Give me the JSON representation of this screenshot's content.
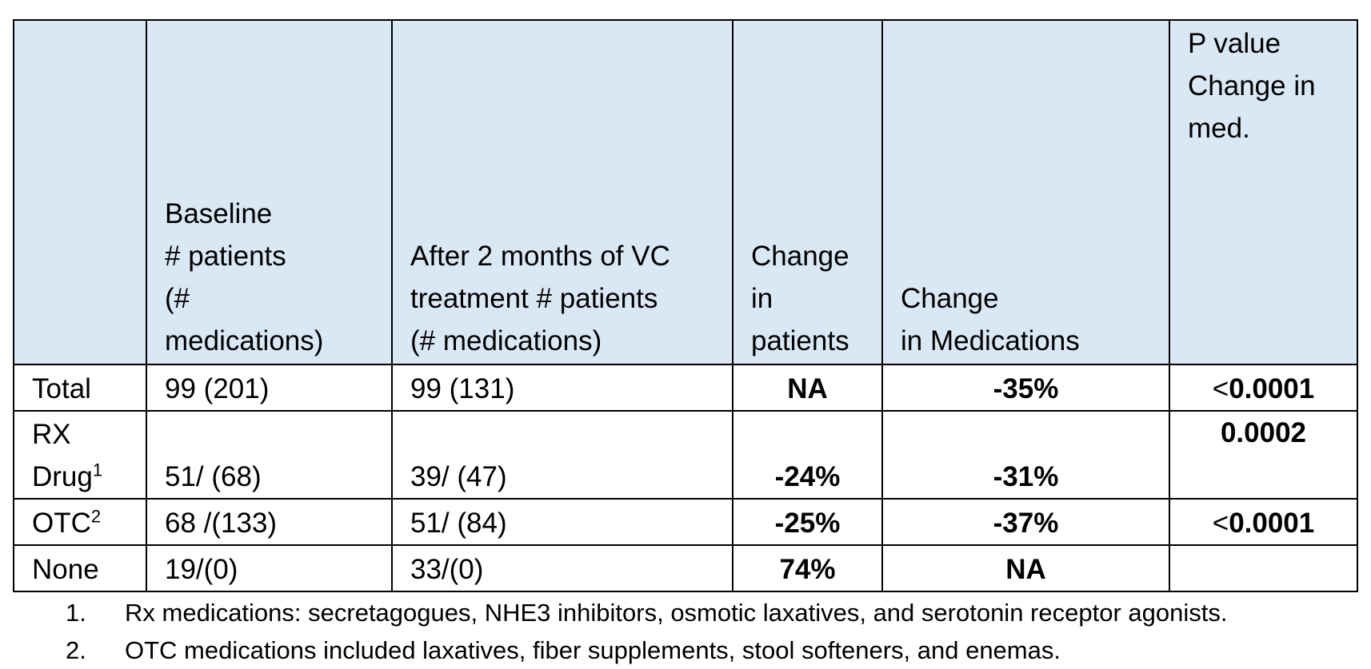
{
  "table": {
    "headers": [
      "",
      "Baseline\n# patients\n(#\nmedications)",
      "After 2 months of VC\ntreatment # patients\n(# medications)",
      "Change\nin\npatients",
      "Change\n in Medications",
      "P value\nChange in\nmed."
    ],
    "rows": [
      {
        "label": "Total",
        "label_sup": "",
        "baseline": "99 (201)",
        "after": "99 (131)",
        "change_patients": "NA",
        "change_medications": "-35%",
        "p_value_symbol": "<",
        "p_value": "0.0001"
      },
      {
        "label": "RX\nDrug",
        "label_sup": "1",
        "baseline": "51/ (68)",
        "after": "39/ (47)",
        "change_patients": "-24%",
        "change_medications": "-31%",
        "p_value_symbol": "",
        "p_value": "0.0002"
      },
      {
        "label": "OTC",
        "label_sup": "2",
        "baseline": "68 /(133)",
        "after": "51/ (84)",
        "change_patients": "-25%",
        "change_medications": "-37%",
        "p_value_symbol": "<",
        "p_value": "0.0001"
      },
      {
        "label": "None",
        "label_sup": "",
        "baseline": "19/(0)",
        "after": "33/(0)",
        "change_patients": "74%",
        "change_medications": "NA",
        "p_value_symbol": "",
        "p_value": ""
      }
    ]
  },
  "footnotes": [
    {
      "number": "1.",
      "text": "Rx medications: secretagogues, NHE3 inhibitors, osmotic laxatives, and serotonin receptor agonists."
    },
    {
      "number": "2.",
      "text": "OTC medications included laxatives, fiber supplements, stool softeners, and enemas."
    }
  ],
  "colors": {
    "header_background": "#dae8f6",
    "border": "#000000"
  }
}
